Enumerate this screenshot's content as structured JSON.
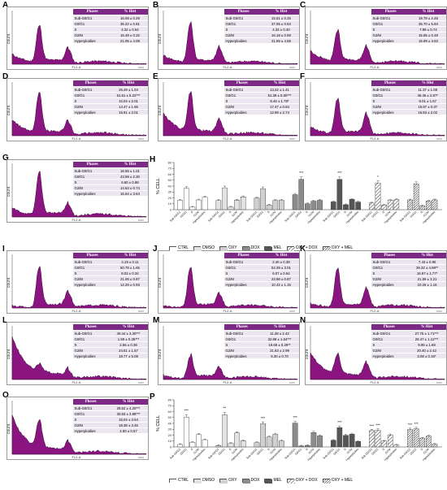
{
  "colors": {
    "histogram_fill": "#8a1580",
    "histogram_edge": "#3a0636",
    "table_header": "#7d2a86",
    "table_row": "#ece6f0"
  },
  "histogram": {
    "ylabel": "count",
    "xlabel": "FL2-A",
    "xmax_tick": "1024"
  },
  "table_header": {
    "phases": "Phases",
    "hist": "% Hist"
  },
  "hist_panels": [
    {
      "letter": "A",
      "rows": [
        [
          "Sub-G0/G1",
          "16.08 ± 0.29"
        ],
        [
          "G0/G1",
          "36.22 ± 0.81"
        ],
        [
          "S",
          "4.32 ± 0.64"
        ],
        [
          "G2/M",
          "16.49 ± 0.32"
        ],
        [
          "Hyperploidies",
          "21.05 ± 4.08"
        ]
      ],
      "g1": 0.72,
      "g2": 0.28,
      "sub": 0.22
    },
    {
      "letter": "B",
      "rows": [
        [
          "Sub-G0/G1",
          "15.61 ± 0.25"
        ],
        [
          "G0/G1",
          "37.05 ± 0.84"
        ],
        [
          "S",
          "4.33 ± 0.40"
        ],
        [
          "G2/M",
          "16.18 ± 0.59"
        ],
        [
          "Hyperploidies",
          "21.69 ± 4.55"
        ]
      ],
      "g1": 0.78,
      "g2": 0.3,
      "sub": 0.2
    },
    {
      "letter": "C",
      "rows": [
        [
          "Sub-G0/G1",
          "19.78 ± 2.48"
        ],
        [
          "G0/G1",
          "35.70 ± 5.84"
        ],
        [
          "S",
          "7.99 ± 0.74"
        ],
        [
          "G2/M",
          "15.85 ± 0.48"
        ],
        [
          "Hyperploidies",
          "15.99 ± 3.63"
        ]
      ],
      "g1": 0.62,
      "g2": 0.3,
      "sub": 0.3
    },
    {
      "letter": "D",
      "rows": [
        [
          "Sub-G0/G1",
          "25.49 ± 1.04"
        ],
        [
          "G0/G1",
          "51.51 ± 5.22***"
        ],
        [
          "S",
          "10.04 ± 2.01"
        ],
        [
          "G2/M",
          "14.47 ± 1.65"
        ],
        [
          "Hyperploidies",
          "15.91 ± 3.01"
        ]
      ],
      "g1": 0.8,
      "g2": 0.25,
      "sub": 0.35
    },
    {
      "letter": "E",
      "rows": [
        [
          "Sub-G0/G1",
          "13.22 ± 1.41"
        ],
        [
          "G0/G1",
          "51.39 ± 5.00***"
        ],
        [
          "S",
          "8.46 ± 1.78*"
        ],
        [
          "G2/M",
          "17.47 ± 0.63"
        ],
        [
          "Hyperploidies",
          "12.99 ± 2.74"
        ]
      ],
      "g1": 0.78,
      "g2": 0.28,
      "sub": 0.5
    },
    {
      "letter": "F",
      "rows": [
        [
          "Sub-G0/G1",
          "11.37 ± 1.08"
        ],
        [
          "G0/G1",
          "45.36 ± 2.87*"
        ],
        [
          "S",
          "8.01 ± 1.67"
        ],
        [
          "G2/M",
          "15.97 ± 0.37"
        ],
        [
          "Hyperploidies",
          "16.83 ± 2.02"
        ]
      ],
      "g1": 0.7,
      "g2": 0.4,
      "sub": 0.2
    },
    {
      "letter": "G",
      "rows": [
        [
          "Sub-G0/G1",
          "16.55 ± 1.01"
        ],
        [
          "G0/G1",
          "43.59 ± 2.30"
        ],
        [
          "S",
          "6.60 ± 0.98"
        ],
        [
          "G2/M",
          "14.63 ± 0.74"
        ],
        [
          "Hyperploidies",
          "16.64 ± 3.64"
        ]
      ],
      "g1": 0.85,
      "g2": 0.22,
      "sub": 0.2
    },
    {
      "letter": "I",
      "rows": [
        [
          "Sub-G0/G1",
          "4.19 ± 0.11"
        ],
        [
          "G0/G1",
          "50.79 ± 1.65"
        ],
        [
          "S",
          "8.03 ± 0.34"
        ],
        [
          "G2/M",
          "21.08 ± 0.87"
        ],
        [
          "Hyperploidies",
          "12.29 ± 0.93"
        ]
      ],
      "g1": 0.8,
      "g2": 0.3,
      "sub": 0.05
    },
    {
      "letter": "J",
      "rows": [
        [
          "Sub-G0/G1",
          "2.40 ± 0.39"
        ],
        [
          "G0/G1",
          "54.39 ± 3.01"
        ],
        [
          "S",
          "6.07 ± 0.64"
        ],
        [
          "G2/M",
          "23.88 ± 0.87"
        ],
        [
          "Hyperploidies",
          "10.42 ± 1.15"
        ]
      ],
      "g1": 0.8,
      "g2": 0.25,
      "sub": 0.05
    },
    {
      "letter": "K",
      "rows": [
        [
          "Sub-G0/G1",
          "7.43 ± 0.85"
        ],
        [
          "G0/G1",
          "39.32 ± 4.69**"
        ],
        [
          "S",
          "16.97 ± 1.77*"
        ],
        [
          "G2/M",
          "21.59 ± 3.21"
        ],
        [
          "Hyperploidies",
          "10.26 ± 1.16"
        ]
      ],
      "g1": 0.75,
      "g2": 0.35,
      "sub": 0.1
    },
    {
      "letter": "L",
      "rows": [
        [
          "Sub-G0/G1",
          "40.44 ± 3.30***"
        ],
        [
          "G0/G1",
          "1.59 ± 0.35***"
        ],
        [
          "S",
          "2.56 ± 0.38"
        ],
        [
          "G2/M",
          "24.51 ± 1.57"
        ],
        [
          "Hyperploidies",
          "18.77 ± 5.08"
        ]
      ],
      "g1": 0.15,
      "g2": 0.15,
      "sub": 0.95
    },
    {
      "letter": "M",
      "rows": [
        [
          "Sub-G0/G1",
          "11.28 ± 2.42"
        ],
        [
          "G0/G1",
          "32.88 ± 1.64***"
        ],
        [
          "S",
          "19.68 ± 0.29**"
        ],
        [
          "G2/M",
          "21.63 ± 2.99"
        ],
        [
          "Hyperploidies",
          "9.30 ± 0.70"
        ]
      ],
      "g1": 0.45,
      "g2": 0.2,
      "sub": 0.1
    },
    {
      "letter": "N",
      "rows": [
        [
          "Sub-G0/G1",
          "27.75 ± 1.71***"
        ],
        [
          "G0/G1",
          "28.47 ± 1.11***"
        ],
        [
          "S",
          "9.96 ± 1.69"
        ],
        [
          "G2/M",
          "20.40 ± 2.42"
        ],
        [
          "Hyperploidies",
          "3.08 ± 0.16*"
        ]
      ],
      "g1": 0.4,
      "g2": 0.3,
      "sub": 0.6
    },
    {
      "letter": "O",
      "rows": [
        [
          "Sub-G0/G1",
          "29.52 ± 4.20***"
        ],
        [
          "G0/G1",
          "30.83 ± 3.88***"
        ],
        [
          "S",
          "15.04 ± 3.54"
        ],
        [
          "G2/M",
          "18.38 ± 3.45"
        ],
        [
          "Hyperploidies",
          "4.60 ± 0.57"
        ]
      ],
      "g1": 0.55,
      "g2": 0.2,
      "sub": 0.85
    }
  ],
  "chart_data": [
    {
      "type": "bar",
      "panel": "H",
      "ylabel": "% CELL",
      "ylim": [
        0,
        80
      ],
      "yticks": [
        0,
        10,
        20,
        30,
        40,
        50,
        60,
        70,
        80
      ],
      "categories": [
        "Sub-G0/G1",
        "G0/G1",
        "S",
        "G2/M",
        "Hyperploidies"
      ],
      "series": [
        {
          "name": "CTRL",
          "values": [
            16.08,
            36.22,
            4.32,
            16.49,
            21.05
          ]
        },
        {
          "name": "DMSO",
          "values": [
            15.61,
            37.05,
            4.33,
            16.18,
            21.69
          ]
        },
        {
          "name": "OXY",
          "values": [
            19.78,
            35.7,
            7.99,
            15.85,
            15.99
          ]
        },
        {
          "name": "DOX",
          "values": [
            25.49,
            51.51,
            10.04,
            14.47,
            15.91
          ]
        },
        {
          "name": "MEL",
          "values": [
            13.22,
            51.39,
            8.46,
            17.47,
            12.99
          ]
        },
        {
          "name": "OXY + DOX",
          "values": [
            11.37,
            45.36,
            8.01,
            15.97,
            16.83
          ]
        },
        {
          "name": "OXY + MEL",
          "values": [
            16.55,
            43.59,
            6.6,
            14.63,
            16.64
          ]
        }
      ],
      "annotations": [
        "***",
        "***",
        "*"
      ]
    },
    {
      "type": "bar",
      "panel": "P",
      "ylabel": "% CELL",
      "ylim": [
        0,
        80
      ],
      "yticks": [
        0,
        10,
        20,
        30,
        40,
        50,
        60,
        70,
        80
      ],
      "categories": [
        "Sub-G0/G1",
        "G0/G1",
        "S",
        "G2/M",
        "Hyperploidies"
      ],
      "series": [
        {
          "name": "CTRL",
          "values": [
            4.19,
            50.79,
            8.03,
            21.08,
            12.29
          ]
        },
        {
          "name": "DMSO",
          "values": [
            2.4,
            54.39,
            6.07,
            23.88,
            10.42
          ]
        },
        {
          "name": "OXY",
          "values": [
            7.43,
            39.32,
            16.97,
            21.59,
            10.26
          ]
        },
        {
          "name": "DOX",
          "values": [
            40.44,
            1.59,
            2.56,
            24.51,
            18.77
          ]
        },
        {
          "name": "MEL",
          "values": [
            11.28,
            32.88,
            19.68,
            21.63,
            9.3
          ]
        },
        {
          "name": "OXY + DOX",
          "values": [
            27.75,
            28.47,
            9.96,
            20.4,
            3.08
          ]
        },
        {
          "name": "OXY + MEL",
          "values": [
            29.52,
            30.83,
            15.04,
            18.38,
            4.6
          ]
        }
      ],
      "annotations": [
        "**",
        "***",
        "***",
        "***",
        "***",
        "***",
        "***",
        "***",
        "***"
      ]
    }
  ],
  "legend": [
    "CTRL",
    "DMSO",
    "OXY",
    "DOX",
    "MEL",
    "OXY + DOX",
    "OXY + MEL"
  ]
}
